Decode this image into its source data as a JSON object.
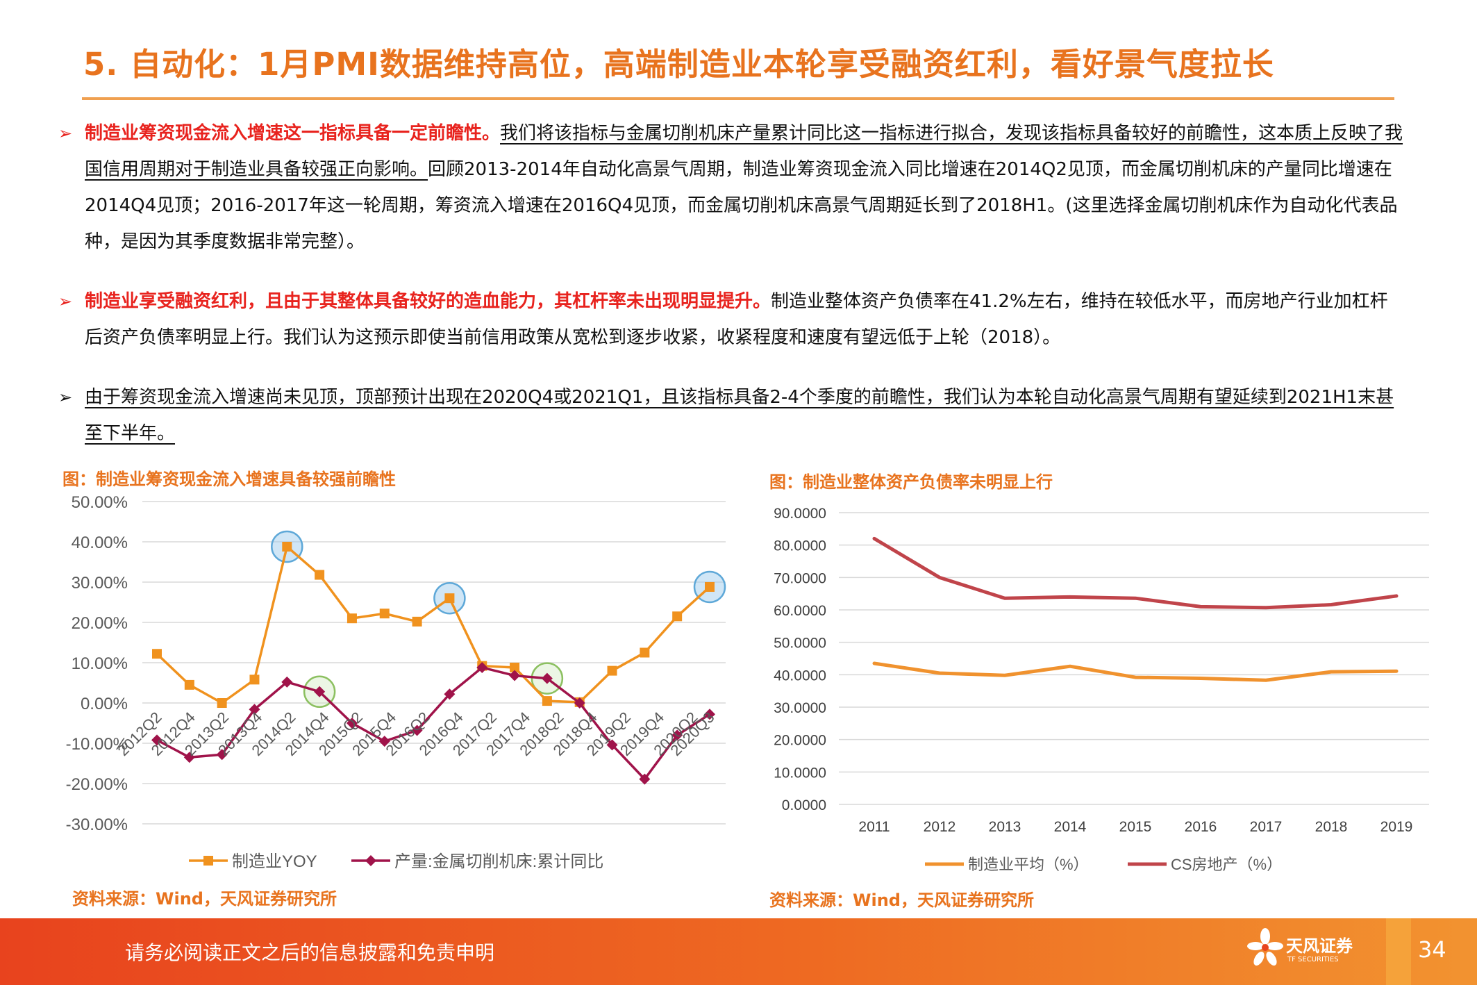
{
  "title": "5. 自动化：1月PMI数据维持高位，高端制造业本轮享受融资红利，看好景气度拉长",
  "bullets": [
    {
      "lead": "制造业筹资现金流入增速这一指标具备一定前瞻性。",
      "body_ul": "我们将该指标与金属切削机床产量累计同比这一指标进行拟合，发现该指标具备较好的前瞻性，这本质上反映了我国信用周期对于制造业具备较强正向影响。",
      "body": "回顾2013-2014年自动化高景气周期，制造业筹资现金流入同比增速在2014Q2见顶，而金属切削机床的产量同比增速在2014Q4见顶；2016-2017年这一轮周期，筹资流入增速在2016Q4见顶，而金属切削机床高景气周期延长到了2018H1。(这里选择金属切削机床作为自动化代表品种，是因为其季度数据非常完整）。"
    },
    {
      "lead": "制造业享受融资红利，且由于其整体具备较好的造血能力，其杠杆率未出现明显提升。",
      "body": "制造业整体资产负债率在41.2%左右，维持在较低水平，而房地产行业加杠杆后资产负债率明显上行。我们认为这预示即使当前信用政策从宽松到逐步收紧，收紧程度和速度有望远低于上轮（2018）。"
    },
    {
      "body_ul": "由于筹资现金流入增速尚未见顶，顶部预计出现在2020Q4或2021Q1，且该指标具备2-4个季度的前瞻性，我们认为本轮自动化高景气周期有望延续到2021H1末甚至下半年。"
    }
  ],
  "chart_data": [
    {
      "type": "line",
      "title": "图：制造业筹资现金流入增速具备较强前瞻性",
      "source": "资料来源：Wind，天风证券研究所",
      "categories": [
        "2012Q2",
        "2012Q4",
        "2013Q2",
        "2013Q4",
        "2014Q2",
        "2014Q4",
        "2015Q2",
        "2015Q4",
        "2016Q2",
        "2016Q4",
        "2017Q2",
        "2017Q4",
        "2018Q2",
        "2018Q4",
        "2019Q2",
        "2019Q4",
        "2020Q2",
        "2020Q3"
      ],
      "x_points": [
        "2012Q2",
        "",
        "2012Q4",
        "",
        "2013Q2",
        "",
        "2013Q4",
        "",
        "2014Q2",
        "",
        "2014Q4",
        "",
        "2015Q2",
        "",
        "2015Q4",
        "",
        "2016Q2",
        "",
        "2016Q4",
        "",
        "2017Q2",
        "",
        "2017Q4",
        "",
        "2018Q2",
        "",
        "2018Q4",
        "",
        "2019Q2",
        "",
        "2019Q4",
        "",
        "2020Q2",
        "2020Q3"
      ],
      "y_ticks": [
        "50.00%",
        "40.00%",
        "30.00%",
        "20.00%",
        "10.00%",
        "0.00%",
        "-10.00%",
        "-20.00%",
        "-30.00%"
      ],
      "ylim": [
        -30,
        50
      ],
      "series": [
        {
          "name": "制造业YOY",
          "color": "#F0921E",
          "marker": "square",
          "values": [
            12.2,
            4.5,
            0.0,
            5.8,
            38.8,
            31.8,
            21.0,
            22.2,
            20.2,
            26.0,
            9.2,
            8.8,
            0.5,
            0.2,
            8.0,
            12.5,
            21.5,
            28.8
          ]
        },
        {
          "name": "产量:金属切削机床:累计同比",
          "color": "#A0134A",
          "marker": "diamond",
          "values": [
            -9.2,
            -13.5,
            -12.8,
            -1.6,
            5.2,
            2.8,
            -5.0,
            -9.5,
            -6.8,
            2.2,
            8.8,
            6.8,
            6.1,
            0.0,
            -10.4,
            -18.9,
            -8.0,
            -2.8
          ]
        }
      ],
      "highlights": [
        {
          "index": 4,
          "color": "#5EA8D8"
        },
        {
          "index": 9,
          "color": "#5EA8D8"
        },
        {
          "index": 17,
          "color": "#5EA8D8"
        },
        {
          "index": 5,
          "color": "#8CC060",
          "series": 1
        },
        {
          "index": 12,
          "color": "#8CC060",
          "series": 1
        }
      ]
    },
    {
      "type": "line",
      "title": "图：制造业整体资产负债率未明显上行",
      "source": "资料来源：Wind，天风证券研究所",
      "categories": [
        "2011",
        "2012",
        "2013",
        "2014",
        "2015",
        "2016",
        "2017",
        "2018",
        "2019"
      ],
      "y_ticks": [
        "90.0000",
        "80.0000",
        "70.0000",
        "60.0000",
        "50.0000",
        "40.0000",
        "30.0000",
        "20.0000",
        "10.0000",
        "0.0000"
      ],
      "ylim": [
        0,
        90
      ],
      "series": [
        {
          "name": "制造业平均（%）",
          "color": "#F0922E",
          "values": [
            43.5,
            40.5,
            39.8,
            42.6,
            39.2,
            38.9,
            38.3,
            40.9,
            41.1
          ]
        },
        {
          "name": "CS房地产（%）",
          "color": "#C0444A",
          "values": [
            82.0,
            70.0,
            63.6,
            64.0,
            63.6,
            61.0,
            60.7,
            61.6,
            64.3
          ]
        }
      ]
    }
  ],
  "footer": {
    "disclaimer": "请务必阅读正文之后的信息披露和免责申明",
    "logo_text": "天风证券",
    "logo_sub": "TF SECURITIES",
    "page": "34"
  },
  "colors": {
    "accent": "#E8731E",
    "lead_red": "#E8231E"
  }
}
